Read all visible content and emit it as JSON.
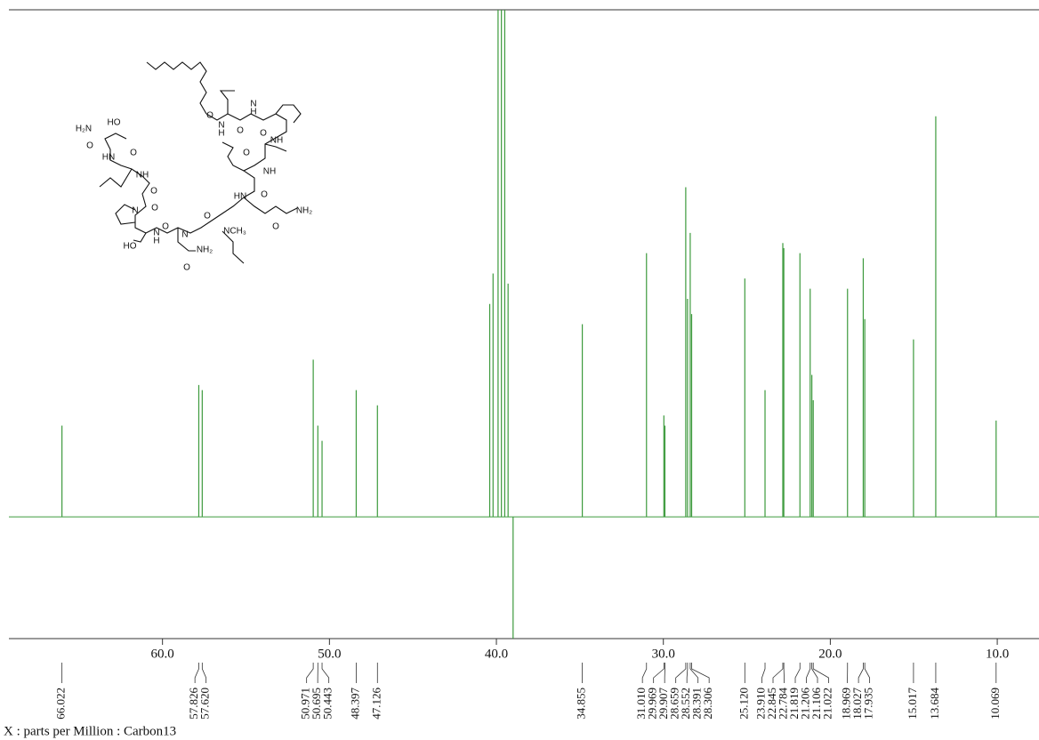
{
  "chart_data": {
    "type": "nmr",
    "x_label": "X : parts per Million : Carbon13",
    "xlim": [
      69.2,
      7.5
    ],
    "ylim": [
      -24,
      100
    ],
    "xticks": [
      {
        "value": 60,
        "label": "60.0"
      },
      {
        "value": 50,
        "label": "50.0"
      },
      {
        "value": 40,
        "label": "40.0"
      },
      {
        "value": 30,
        "label": "30.0"
      },
      {
        "value": 20,
        "label": "20.0"
      },
      {
        "value": 10,
        "label": "10.0"
      }
    ],
    "color": "#3d9a3d",
    "peaks": {
      "ppm": [
        66.022,
        57.826,
        57.62,
        50.971,
        50.695,
        50.443,
        48.397,
        47.126,
        34.855,
        31.01,
        29.969,
        29.907,
        28.659,
        28.552,
        28.391,
        28.306,
        25.12,
        23.91,
        22.845,
        22.784,
        21.819,
        21.206,
        21.106,
        21.022,
        18.969,
        18.027,
        17.935,
        15.017,
        13.684,
        10.069
      ],
      "labels": [
        "66.022",
        "57.826",
        "57.620",
        "50.971",
        "50.695",
        "50.443",
        "48.397",
        "47.126",
        "34.855",
        "31.010",
        "29.969",
        "29.907",
        "28.659",
        "28.552",
        "28.391",
        "28.306",
        "25.120",
        "23.910",
        "22.845",
        "22.784",
        "21.819",
        "21.206",
        "21.106",
        "21.022",
        "18.969",
        "18.027",
        "17.935",
        "15.017",
        "13.684",
        "10.069"
      ],
      "intensity": [
        18,
        26,
        25,
        31,
        18,
        15,
        25,
        22,
        38,
        52,
        20,
        18,
        65,
        43,
        56,
        40,
        47,
        25,
        54,
        53,
        52,
        45,
        28,
        23,
        45,
        51,
        39,
        35,
        79,
        19
      ]
    },
    "solvent_peaks": {
      "ppm": [
        40.4,
        40.2,
        39.9,
        39.7,
        39.5,
        39.3,
        39.0
      ],
      "intensity": [
        42,
        48,
        110,
        110,
        110,
        46,
        -24
      ]
    }
  },
  "structure": {
    "labels": [
      "H₂N",
      "HO",
      "O",
      "HN",
      "O",
      "NH",
      "O",
      "N",
      "O",
      "HO",
      "N",
      "H",
      "O",
      "N",
      "O",
      "NH₂",
      "O",
      "NCH₃",
      "HN",
      "O",
      "NH₂",
      "O",
      "NH",
      "O",
      "NH",
      "O",
      "N",
      "H",
      "O",
      "N",
      "H",
      "O"
    ]
  }
}
